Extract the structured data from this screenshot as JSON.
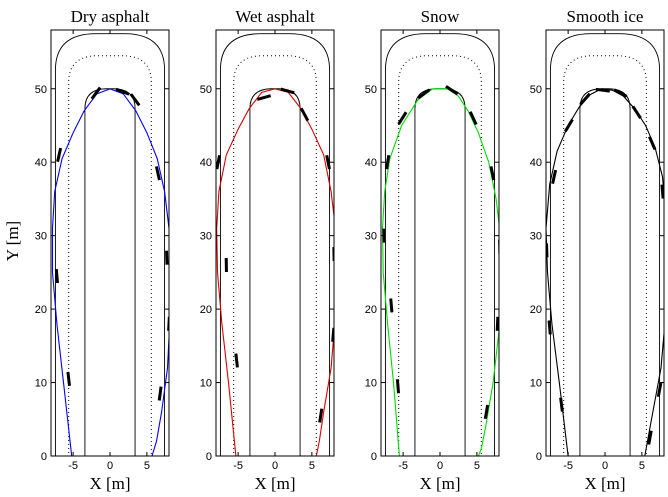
{
  "figure": {
    "ylabel": "Y [m]",
    "xlabel": "X [m]",
    "xlim": [
      -8,
      8
    ],
    "ylim": [
      0,
      58
    ],
    "xticks": [
      -5,
      0,
      5
    ],
    "yticks": [
      0,
      10,
      20,
      30,
      40,
      50
    ]
  },
  "chart_data": [
    {
      "type": "line",
      "title": "Dry asphalt",
      "xlabel": "X [m]",
      "ylabel": "Y [m]",
      "xlim": [
        -8,
        8
      ],
      "ylim": [
        0,
        58
      ],
      "trajectory_color": "#0000ff",
      "trajectory": {
        "x": [
          -5.2,
          -6.3,
          -7.2,
          -7.8,
          -7.8,
          -7.5,
          -6.5,
          -5.0,
          -3.5,
          -1.8,
          0.0,
          1.8,
          3.5,
          5.0,
          6.4,
          7.4,
          8.0,
          8.2,
          8.1,
          7.8,
          7.0,
          6.3,
          5.7
        ],
        "y": [
          0,
          10,
          18,
          25,
          31,
          36,
          40.5,
          44,
          47,
          49.3,
          50,
          49.3,
          47,
          44,
          40.5,
          36,
          31,
          25,
          18,
          12,
          6,
          2,
          0
        ]
      },
      "markers": {
        "x": [
          -5.6,
          -7.2,
          -6.9,
          -1.9,
          1.7,
          3.4,
          6.5,
          7.7,
          8.0,
          6.8
        ],
        "y": [
          10.5,
          24.5,
          41.0,
          49.4,
          49.6,
          48.5,
          38.5,
          27.0,
          18.0,
          8.5
        ]
      }
    },
    {
      "type": "line",
      "title": "Wet asphalt",
      "xlabel": "X [m]",
      "ylabel": "",
      "xlim": [
        -8,
        8
      ],
      "ylim": [
        0,
        58
      ],
      "trajectory_color": "#dd0000",
      "trajectory": {
        "x": [
          -5.3,
          -6.3,
          -7.2,
          -7.8,
          -7.9,
          -7.6,
          -6.6,
          -5.0,
          -3.5,
          -1.8,
          0.0,
          1.8,
          3.5,
          5.0,
          6.6,
          7.6,
          8.2,
          8.3,
          8.1,
          7.6,
          6.6,
          6.0,
          5.6
        ],
        "y": [
          0,
          10,
          18,
          25,
          31,
          36,
          41,
          44.5,
          47.3,
          49.5,
          50,
          49.5,
          47.3,
          44.5,
          41,
          36,
          31,
          25,
          18,
          12,
          6,
          2,
          0
        ]
      },
      "markers": {
        "x": [
          -5.2,
          -6.6,
          -7.7,
          -1.5,
          1.7,
          4.0,
          7.2,
          8.0,
          7.9,
          6.2
        ],
        "y": [
          13.0,
          26.0,
          40.0,
          48.8,
          49.7,
          46.5,
          40.0,
          27.5,
          16.5,
          5.5
        ]
      }
    },
    {
      "type": "line",
      "title": "Snow",
      "xlabel": "X [m]",
      "ylabel": "",
      "xlim": [
        -8,
        8
      ],
      "ylim": [
        0,
        58
      ],
      "trajectory_color": "#00dd00",
      "trajectory": {
        "x": [
          -5.5,
          -6.3,
          -7.1,
          -7.7,
          -7.8,
          -7.5,
          -6.8,
          -5.2,
          -3.0,
          -1.0,
          1.0,
          2.5,
          3.8,
          5.2,
          6.6,
          7.6,
          8.2,
          8.3,
          8.0,
          7.2,
          6.2,
          5.6,
          5.2
        ],
        "y": [
          0,
          10,
          18,
          25,
          31,
          36,
          40.5,
          45,
          48.5,
          50,
          50,
          49,
          47,
          44,
          40,
          35,
          30,
          24,
          17,
          10,
          4,
          1,
          0
        ]
      },
      "markers": {
        "x": [
          -5.7,
          -6.6,
          -7.6,
          -7.1,
          -5.1,
          -2.2,
          1.6,
          4.5,
          7.1,
          8.1,
          7.8,
          6.3
        ],
        "y": [
          9.5,
          20.5,
          30.0,
          40.0,
          46.0,
          49.3,
          49.8,
          46.0,
          38.5,
          28.5,
          18.0,
          6.0
        ]
      }
    },
    {
      "type": "line",
      "title": "Smooth ice",
      "xlabel": "X [m]",
      "ylabel": "",
      "xlim": [
        -8,
        8
      ],
      "ylim": [
        0,
        58
      ],
      "trajectory_color": "#000000",
      "trajectory": {
        "x": [
          -5.0,
          -6.2,
          -7.2,
          -7.8,
          -8.0,
          -7.5,
          -6.5,
          -5.0,
          -3.5,
          -2.0,
          -0.5,
          1.0,
          2.5,
          4.0,
          5.5,
          6.8,
          7.8,
          8.3,
          8.4,
          8.2,
          7.6,
          6.3,
          5.4
        ],
        "y": [
          0,
          10,
          18,
          25,
          31,
          37,
          41.5,
          45,
          47.5,
          49.2,
          50,
          49.8,
          49,
          47.3,
          45,
          42,
          38,
          32,
          26,
          19,
          12,
          5,
          0
        ]
      },
      "markers": {
        "x": [
          -5.9,
          -7.5,
          -7.9,
          -6.9,
          -4.9,
          -2.7,
          -0.3,
          2.1,
          4.3,
          6.4,
          7.8,
          8.3,
          8.2,
          7.4,
          6.1
        ],
        "y": [
          7.0,
          17.5,
          28.0,
          38.0,
          45.0,
          48.6,
          49.8,
          49.4,
          46.8,
          42.6,
          36.0,
          26.5,
          17.0,
          9.0,
          2.5
        ]
      }
    }
  ]
}
